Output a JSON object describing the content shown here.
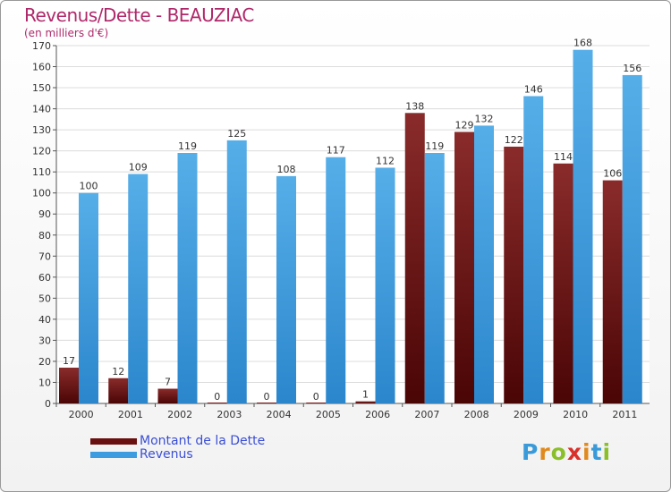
{
  "header": {
    "title": "Revenus/Dette - BEAUZIAC",
    "subtitle": "(en milliers d'€)"
  },
  "chart_data": {
    "type": "bar",
    "title": "Revenus/Dette - BEAUZIAC",
    "subtitle": "(en milliers d'€)",
    "categories": [
      "2000",
      "2001",
      "2002",
      "2003",
      "2004",
      "2005",
      "2006",
      "2007",
      "2008",
      "2009",
      "2010",
      "2011"
    ],
    "series": [
      {
        "name": "Montant de la Dette",
        "color": "#7a1a1a",
        "values": [
          17,
          12,
          7,
          0,
          0,
          0,
          1,
          138,
          129,
          122,
          114,
          106
        ]
      },
      {
        "name": "Revenus",
        "color": "#3d9be0",
        "values": [
          100,
          109,
          119,
          125,
          108,
          117,
          112,
          119,
          132,
          146,
          168,
          156
        ]
      }
    ],
    "ylim": [
      0,
      170
    ],
    "yticks": [
      0,
      10,
      20,
      30,
      40,
      50,
      60,
      70,
      80,
      90,
      100,
      110,
      120,
      130,
      140,
      150,
      160,
      170
    ],
    "grid": true,
    "legend_position": "bottom-left"
  },
  "legend": {
    "items": [
      {
        "label": "Montant de la Dette",
        "color": "#6b1010"
      },
      {
        "label": "Revenus",
        "color": "#3d9be0"
      }
    ]
  },
  "logo": {
    "letters": [
      "P",
      "r",
      "o",
      "x",
      "i",
      "t",
      "i"
    ],
    "colors": [
      "#3a9ad9",
      "#e08a1e",
      "#8bbf2a",
      "#d9302a",
      "#e08a1e",
      "#3a9ad9",
      "#8bbf2a"
    ]
  }
}
